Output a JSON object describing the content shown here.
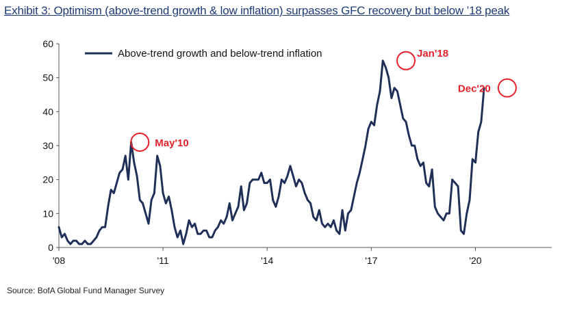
{
  "title": "Exhibit 3: Optimism (above-trend growth & low inflation) surpasses GFC recovery but below ’18 peak",
  "source": "Source: BofA Global Fund Manager Survey",
  "colors": {
    "line": "#1f2f57",
    "annotation": "#e8202a",
    "title": "#1f3c7a"
  },
  "chart_data": {
    "type": "line",
    "x_start": 2008.0,
    "x_step": 0.0833333,
    "xlim": [
      2008.0,
      2022.2
    ],
    "ylim": [
      0,
      60
    ],
    "yticks": [
      0,
      10,
      20,
      30,
      40,
      50,
      60
    ],
    "xticks": [
      {
        "value": 2008,
        "label": "'08"
      },
      {
        "value": 2011,
        "label": "'11"
      },
      {
        "value": 2014,
        "label": "'14"
      },
      {
        "value": 2017,
        "label": "'17"
      },
      {
        "value": 2020,
        "label": "'20"
      }
    ],
    "series": [
      {
        "name": "Above-trend growth and below-trend inflation",
        "values": [
          6,
          3,
          4,
          2,
          1,
          2,
          2,
          1,
          1,
          2,
          1,
          1,
          2,
          3,
          5,
          6,
          6,
          12,
          17,
          16,
          19,
          22,
          23,
          27,
          20,
          31,
          25,
          21,
          14,
          13,
          10,
          7,
          14,
          16,
          27,
          24,
          16,
          13,
          15,
          11,
          6,
          3,
          5,
          1,
          4,
          8,
          6,
          7,
          4,
          4,
          5,
          5,
          3,
          3,
          5,
          6,
          8,
          7,
          9,
          13,
          8,
          10,
          12,
          18,
          11,
          13,
          19,
          20,
          20,
          20,
          22,
          19,
          19,
          20,
          14,
          12,
          15,
          20,
          19,
          21,
          24,
          21,
          18,
          20,
          19,
          16,
          14,
          13,
          9,
          8,
          11,
          7,
          6,
          7,
          6,
          8,
          5,
          4,
          11,
          5,
          10,
          11,
          15,
          19,
          22,
          26,
          30,
          35,
          37,
          36,
          42,
          46,
          55,
          53,
          50,
          44,
          47,
          46,
          42,
          38,
          37,
          33,
          30,
          30,
          26,
          24,
          25,
          19,
          18,
          23,
          12,
          10,
          9,
          8,
          10,
          10,
          20,
          19,
          18,
          5,
          4,
          10,
          14,
          26,
          25,
          34,
          37,
          47
        ]
      }
    ],
    "legend": {
      "position": "top-left",
      "entries": [
        "Above-trend growth and below-trend inflation"
      ]
    },
    "grid": false,
    "annotations": [
      {
        "label": "May'10",
        "x": 2010.333,
        "y": 31
      },
      {
        "label": "Jan'18",
        "x": 2018.0,
        "y": 55
      },
      {
        "label": "Dec'20",
        "x": 2020.917,
        "y": 47
      }
    ]
  }
}
